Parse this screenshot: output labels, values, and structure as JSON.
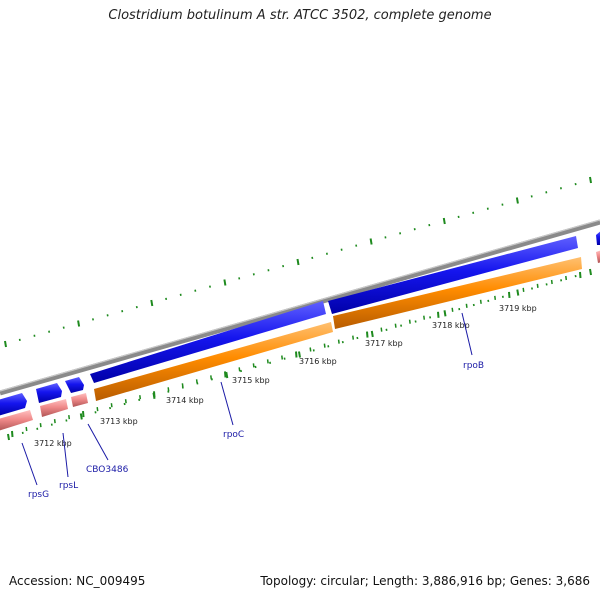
{
  "header": {
    "title": "Clostridium botulinum A str. ATCC 3502, complete genome"
  },
  "footer": {
    "accession": "Accession: NC_009495",
    "summary": "Topology: circular; Length: 3,886,916 bp; Genes: 3,686"
  },
  "colors": {
    "backbone": "#8a8a8a",
    "forward_cds": "#1010e0",
    "reverse_rna": "#f08a8a",
    "reverse_cds": "#ff8c00",
    "gc_tick": "#1e8a1e",
    "label_text": "#1a1aa6"
  },
  "scale": {
    "labels": [
      "3712 kbp",
      "3713 kbp",
      "3714 kbp",
      "3715 kbp",
      "3716 kbp",
      "3717 kbp",
      "3718 kbp",
      "3719 kbp"
    ]
  },
  "genes": [
    {
      "name": "rpsG"
    },
    {
      "name": "rpsL"
    },
    {
      "name": "CBO3486"
    },
    {
      "name": "rpoC"
    },
    {
      "name": "rpoB"
    }
  ]
}
